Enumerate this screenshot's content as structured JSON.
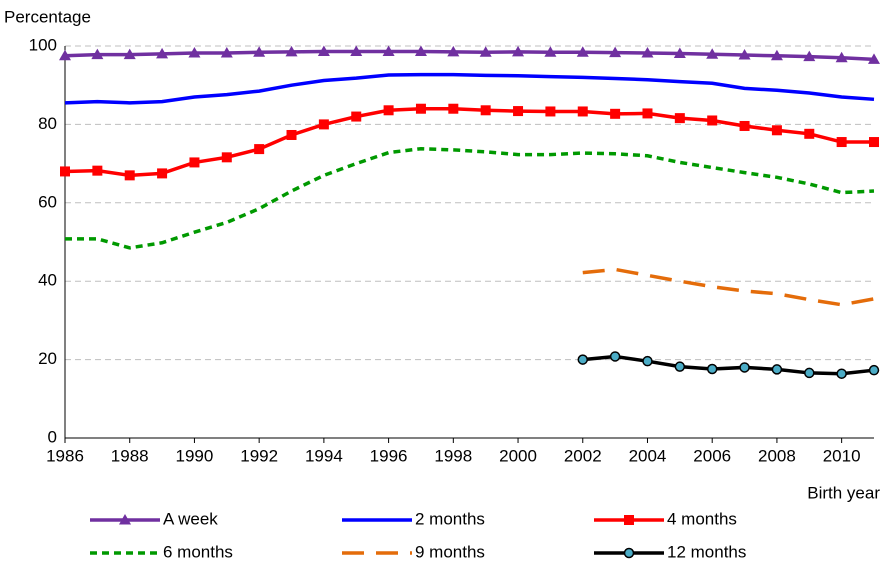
{
  "chart_data": {
    "type": "line",
    "y_label": "Percentage",
    "x_label": "Birth year",
    "x": [
      1986,
      1987,
      1988,
      1989,
      1990,
      1991,
      1992,
      1993,
      1994,
      1995,
      1996,
      1997,
      1998,
      1999,
      2000,
      2001,
      2002,
      2003,
      2004,
      2005,
      2006,
      2007,
      2008,
      2009,
      2010,
      2011
    ],
    "xlim": [
      1986,
      2011
    ],
    "xticks": [
      1986,
      1988,
      1990,
      1992,
      1994,
      1996,
      1998,
      2000,
      2002,
      2004,
      2006,
      2008,
      2010
    ],
    "ylim": [
      0,
      100
    ],
    "yticks": [
      0,
      20,
      40,
      60,
      80,
      100
    ],
    "grid": true,
    "legend": "bottom",
    "series": [
      {
        "name": "A week",
        "color": "#7030a0",
        "marker": "triangle",
        "dash": "solid",
        "values": [
          97.5,
          97.8,
          97.8,
          98,
          98.2,
          98.2,
          98.4,
          98.5,
          98.6,
          98.6,
          98.6,
          98.6,
          98.5,
          98.4,
          98.5,
          98.4,
          98.4,
          98.3,
          98.2,
          98.1,
          97.9,
          97.7,
          97.5,
          97.3,
          97,
          96.6
        ]
      },
      {
        "name": "2 months",
        "color": "#0000ff",
        "marker": "none",
        "dash": "solid",
        "values": [
          85.5,
          85.8,
          85.5,
          85.8,
          87,
          87.6,
          88.5,
          90,
          91.2,
          91.8,
          92.6,
          92.7,
          92.7,
          92.5,
          92.4,
          92.2,
          92,
          91.7,
          91.4,
          90.9,
          90.5,
          89.2,
          88.7,
          88,
          87,
          86.4
        ]
      },
      {
        "name": "4 months",
        "color": "#ff0000",
        "marker": "square",
        "dash": "solid",
        "values": [
          68,
          68.2,
          67,
          67.5,
          70.3,
          71.6,
          73.7,
          77.3,
          80,
          82,
          83.6,
          84,
          84,
          83.6,
          83.4,
          83.3,
          83.3,
          82.7,
          82.8,
          81.6,
          81,
          79.6,
          78.5,
          77.6,
          75.5,
          75.5
        ]
      },
      {
        "name": "6 months",
        "color": "#009900",
        "marker": "none",
        "dash": "short",
        "values": [
          50.8,
          50.8,
          48.5,
          49.8,
          52.5,
          55,
          58.5,
          63,
          67,
          70,
          72.8,
          73.8,
          73.5,
          73,
          72.3,
          72.3,
          72.7,
          72.5,
          72,
          70.3,
          69,
          67.7,
          66.5,
          64.8,
          62.6,
          63
        ]
      },
      {
        "name": "9 months",
        "color": "#e46c0a",
        "marker": "none",
        "dash": "long",
        "values": [
          null,
          null,
          null,
          null,
          null,
          null,
          null,
          null,
          null,
          null,
          null,
          null,
          null,
          null,
          null,
          null,
          42.2,
          43,
          41.5,
          40,
          38.6,
          37.5,
          36.8,
          35.3,
          34,
          35.5
        ]
      },
      {
        "name": "12 months",
        "color": "#000000",
        "marker": "circle",
        "dash": "solid",
        "values": [
          null,
          null,
          null,
          null,
          null,
          null,
          null,
          null,
          null,
          null,
          null,
          null,
          null,
          null,
          null,
          null,
          20,
          20.8,
          19.6,
          18.2,
          17.6,
          18,
          17.5,
          16.6,
          16.4,
          17.3
        ]
      }
    ]
  }
}
